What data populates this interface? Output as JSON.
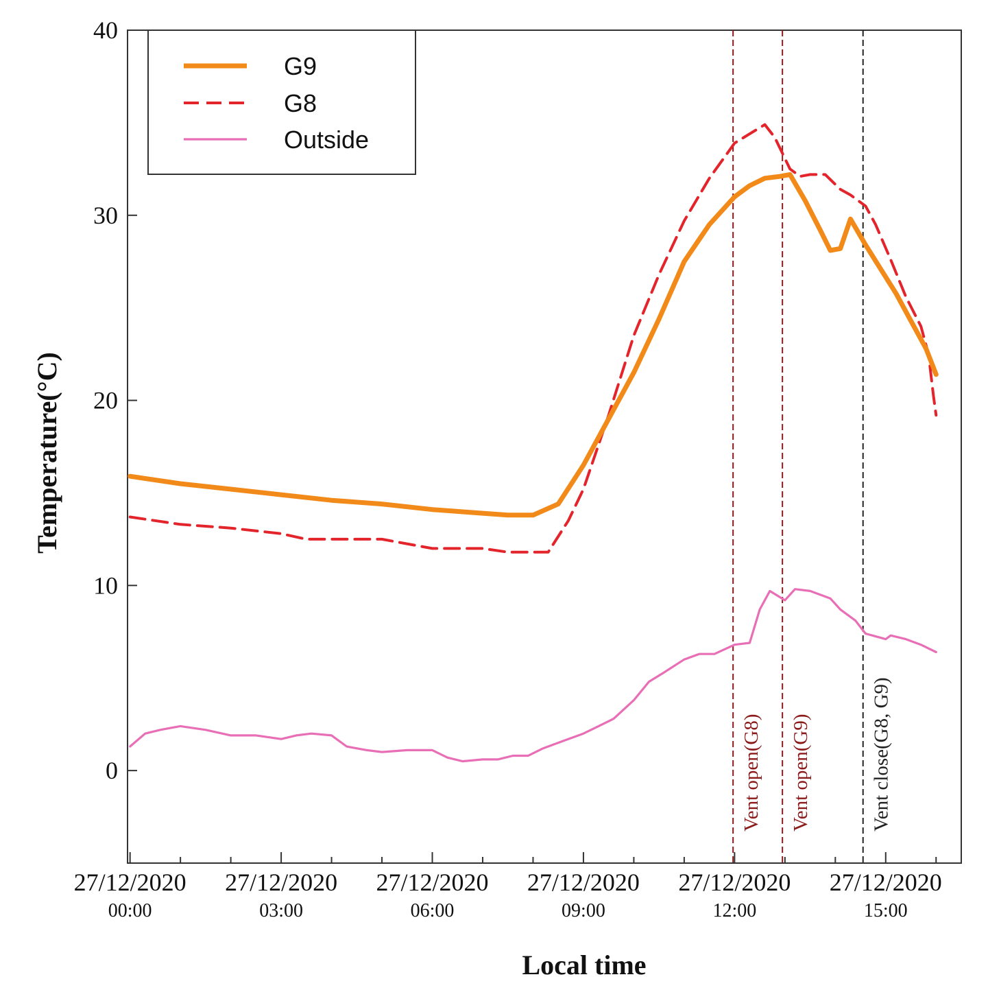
{
  "chart_data": {
    "type": "line",
    "title": "",
    "xlabel": "Local time",
    "ylabel": "Temperature(°C)",
    "xlim": [
      -0.05,
      16.5
    ],
    "ylim": [
      -5,
      40
    ],
    "x_unit": "hours since 27/12/2020 00:00",
    "yticks": [
      0,
      10,
      20,
      30,
      40
    ],
    "xticks": [
      {
        "x": 0,
        "date": "27/12/2020",
        "time": "00:00"
      },
      {
        "x": 3,
        "date": "27/12/2020",
        "time": "03:00"
      },
      {
        "x": 6,
        "date": "27/12/2020",
        "time": "06:00"
      },
      {
        "x": 9,
        "date": "27/12/2020",
        "time": "09:00"
      },
      {
        "x": 12,
        "date": "27/12/2020",
        "time": "12:00"
      },
      {
        "x": 15,
        "date": "27/12/2020",
        "time": "15:00"
      }
    ],
    "minor_xticks": [
      1,
      2,
      4,
      5,
      7,
      8,
      10,
      11,
      13,
      14,
      16
    ],
    "legend_position": "top-left",
    "series": [
      {
        "name": "G9",
        "color": "#f28a1a",
        "style": "solid-thick",
        "points": [
          [
            0,
            15.9
          ],
          [
            1,
            15.5
          ],
          [
            2,
            15.2
          ],
          [
            3,
            14.9
          ],
          [
            4,
            14.6
          ],
          [
            5,
            14.4
          ],
          [
            6,
            14.1
          ],
          [
            7,
            13.9
          ],
          [
            7.5,
            13.8
          ],
          [
            8,
            13.8
          ],
          [
            8.5,
            14.4
          ],
          [
            9,
            16.5
          ],
          [
            9.5,
            19
          ],
          [
            10,
            21.5
          ],
          [
            10.5,
            24.4
          ],
          [
            11,
            27.5
          ],
          [
            11.5,
            29.5
          ],
          [
            12,
            31
          ],
          [
            12.3,
            31.6
          ],
          [
            12.6,
            32
          ],
          [
            12.9,
            32.1
          ],
          [
            13.1,
            32.2
          ],
          [
            13.4,
            30.8
          ],
          [
            13.7,
            29.2
          ],
          [
            13.9,
            28.1
          ],
          [
            14.1,
            28.2
          ],
          [
            14.3,
            29.8
          ],
          [
            14.6,
            28.4
          ],
          [
            14.9,
            27.1
          ],
          [
            15.2,
            25.8
          ],
          [
            15.5,
            24.3
          ],
          [
            15.8,
            22.8
          ],
          [
            16,
            21.4
          ]
        ]
      },
      {
        "name": "G8",
        "color": "#e3242b",
        "style": "dashed",
        "points": [
          [
            0,
            13.7
          ],
          [
            1,
            13.3
          ],
          [
            2,
            13.1
          ],
          [
            3,
            12.8
          ],
          [
            3.5,
            12.5
          ],
          [
            4,
            12.5
          ],
          [
            5,
            12.5
          ],
          [
            6,
            12
          ],
          [
            7,
            12
          ],
          [
            7.5,
            11.8
          ],
          [
            8,
            11.8
          ],
          [
            8.3,
            11.8
          ],
          [
            8.7,
            13.5
          ],
          [
            9,
            15.2
          ],
          [
            9.5,
            19.2
          ],
          [
            10,
            23.5
          ],
          [
            10.5,
            26.8
          ],
          [
            11,
            29.7
          ],
          [
            11.5,
            32
          ],
          [
            12,
            33.9
          ],
          [
            12.3,
            34.4
          ],
          [
            12.6,
            34.9
          ],
          [
            12.8,
            34.2
          ],
          [
            13.1,
            32.5
          ],
          [
            13.3,
            32.1
          ],
          [
            13.5,
            32.2
          ],
          [
            13.8,
            32.2
          ],
          [
            14.1,
            31.4
          ],
          [
            14.3,
            31.1
          ],
          [
            14.6,
            30.5
          ],
          [
            14.8,
            29.5
          ],
          [
            15.1,
            27.6
          ],
          [
            15.4,
            25.6
          ],
          [
            15.7,
            24
          ],
          [
            15.85,
            22.5
          ],
          [
            15.95,
            20.2
          ],
          [
            16,
            19.2
          ]
        ]
      },
      {
        "name": "Outside",
        "color": "#e86fb5",
        "style": "solid-thin",
        "points": [
          [
            0,
            1.3
          ],
          [
            0.3,
            2
          ],
          [
            0.6,
            2.2
          ],
          [
            1,
            2.4
          ],
          [
            1.5,
            2.2
          ],
          [
            2,
            1.9
          ],
          [
            2.5,
            1.9
          ],
          [
            3,
            1.7
          ],
          [
            3.3,
            1.9
          ],
          [
            3.6,
            2
          ],
          [
            4,
            1.9
          ],
          [
            4.3,
            1.3
          ],
          [
            4.7,
            1.1
          ],
          [
            5,
            1
          ],
          [
            5.5,
            1.1
          ],
          [
            6,
            1.1
          ],
          [
            6.3,
            0.7
          ],
          [
            6.6,
            0.5
          ],
          [
            7,
            0.6
          ],
          [
            7.3,
            0.6
          ],
          [
            7.6,
            0.8
          ],
          [
            7.9,
            0.8
          ],
          [
            8.2,
            1.2
          ],
          [
            8.6,
            1.6
          ],
          [
            9,
            2
          ],
          [
            9.3,
            2.4
          ],
          [
            9.6,
            2.8
          ],
          [
            10,
            3.8
          ],
          [
            10.3,
            4.8
          ],
          [
            10.6,
            5.3
          ],
          [
            11,
            6
          ],
          [
            11.3,
            6.3
          ],
          [
            11.6,
            6.3
          ],
          [
            12,
            6.8
          ],
          [
            12.3,
            6.9
          ],
          [
            12.5,
            8.7
          ],
          [
            12.7,
            9.7
          ],
          [
            13,
            9.2
          ],
          [
            13.2,
            9.8
          ],
          [
            13.5,
            9.7
          ],
          [
            13.9,
            9.3
          ],
          [
            14.1,
            8.7
          ],
          [
            14.4,
            8.1
          ],
          [
            14.6,
            7.4
          ],
          [
            15,
            7.1
          ],
          [
            15.1,
            7.3
          ],
          [
            15.4,
            7.1
          ],
          [
            15.7,
            6.8
          ],
          [
            16,
            6.4
          ]
        ]
      }
    ],
    "annotations": [
      {
        "x": 11.97,
        "label": "Vent open(G8)",
        "color": "#8b1a1a"
      },
      {
        "x": 12.95,
        "label": "Vent open(G9)",
        "color": "#8b1a1a"
      },
      {
        "x": 14.55,
        "label": "Vent close(G8, G9)",
        "color": "#222222"
      }
    ]
  }
}
